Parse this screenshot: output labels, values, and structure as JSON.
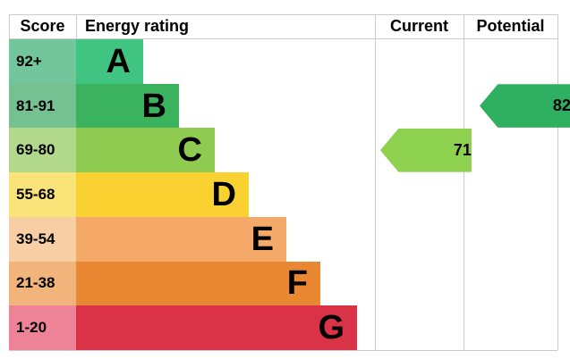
{
  "header": {
    "score": "Score",
    "energy_rating": "Energy rating",
    "current": "Current",
    "potential": "Potential"
  },
  "bands": [
    {
      "grade": "A",
      "score_range": "92+",
      "bar_color": "#40c482",
      "score_cell_color": "#73c69c"
    },
    {
      "grade": "B",
      "score_range": "81-91",
      "bar_color": "#3bb35e",
      "score_cell_color": "#76c192"
    },
    {
      "grade": "C",
      "score_range": "69-80",
      "bar_color": "#8ecb50",
      "score_cell_color": "#b2d88b"
    },
    {
      "grade": "D",
      "score_range": "55-68",
      "bar_color": "#f9d231",
      "score_cell_color": "#fae378"
    },
    {
      "grade": "E",
      "score_range": "39-54",
      "bar_color": "#f4a968",
      "score_cell_color": "#f8cfa5"
    },
    {
      "grade": "F",
      "score_range": "21-38",
      "bar_color": "#e98732",
      "score_cell_color": "#f1b47b"
    },
    {
      "grade": "G",
      "score_range": "1-20",
      "bar_color": "#da3348",
      "score_cell_color": "#ee8398"
    }
  ],
  "current": {
    "value": "71",
    "grade": "C",
    "color": "#8ed14e"
  },
  "potential": {
    "value": "82",
    "grade": "B",
    "color": "#2fb061"
  },
  "border_color": "#cbcbcb",
  "chart_data": {
    "type": "bar",
    "title": "Energy rating",
    "categories": [
      "A",
      "B",
      "C",
      "D",
      "E",
      "F",
      "G"
    ],
    "score_ranges": [
      "92+",
      "81-91",
      "69-80",
      "55-68",
      "39-54",
      "21-38",
      "1-20"
    ],
    "bar_colors": [
      "#40c482",
      "#3bb35e",
      "#8ecb50",
      "#f9d231",
      "#f4a968",
      "#e98732",
      "#da3348"
    ],
    "legend_columns": [
      "Score",
      "Energy rating",
      "Current",
      "Potential"
    ],
    "current": {
      "value": 71,
      "grade": "C"
    },
    "potential": {
      "value": 82,
      "grade": "B"
    }
  }
}
